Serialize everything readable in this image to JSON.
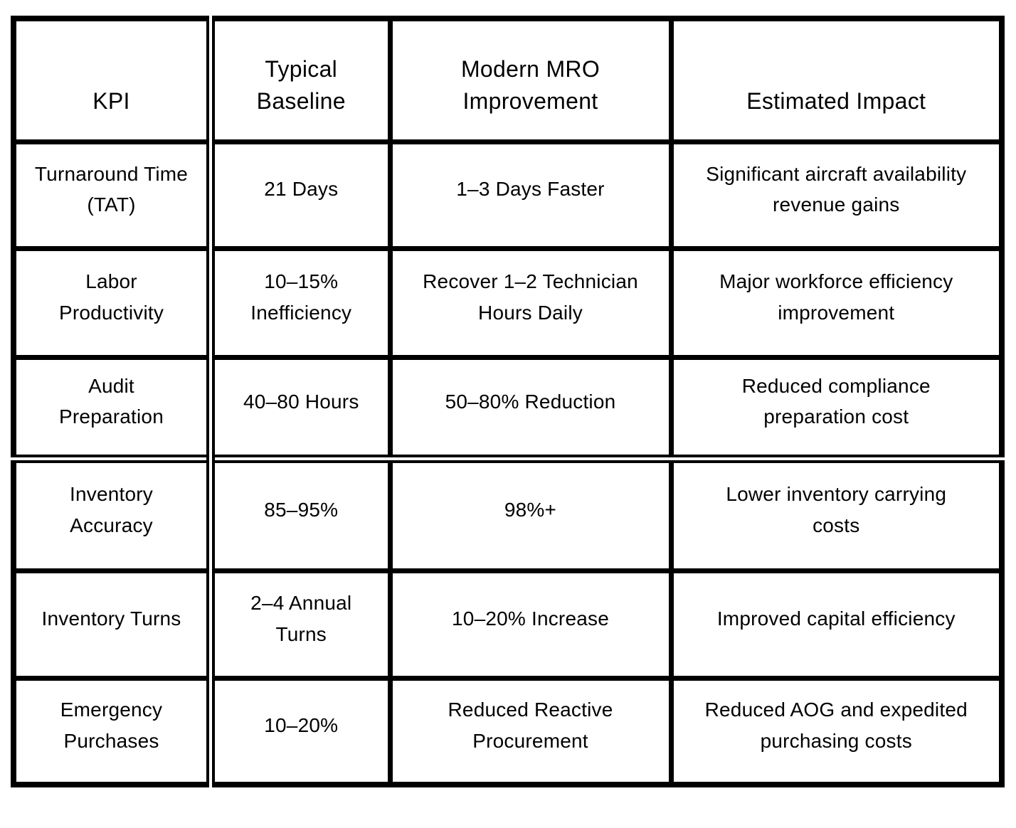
{
  "colors": {
    "border": "#000000",
    "text": "#000000",
    "background": "#ffffff"
  },
  "table": {
    "columns": [
      "KPI",
      "Typical\nBaseline",
      "Modern MRO\nImprovement",
      "Estimated Impact"
    ],
    "rows": [
      [
        "Turnaround Time\n(TAT)",
        "21 Days",
        "1–3 Days Faster",
        "Significant aircraft availability\nrevenue gains"
      ],
      [
        "Labor\nProductivity",
        "10–15%\nInefficiency",
        "Recover 1–2 Technician\nHours Daily",
        "Major workforce efficiency\nimprovement"
      ],
      [
        "Audit\nPreparation",
        "40–80 Hours",
        "50–80% Reduction",
        "Reduced compliance\npreparation cost"
      ],
      [
        "Inventory\nAccuracy",
        "85–95%",
        "98%+",
        "Lower inventory carrying\ncosts"
      ],
      [
        "Inventory Turns",
        "2–4 Annual\nTurns",
        "10–20% Increase",
        "Improved capital efficiency"
      ],
      [
        "Emergency\nPurchases",
        "10–20%",
        "Reduced Reactive\nProcurement",
        "Reduced AOG and expedited\npurchasing costs"
      ]
    ]
  }
}
